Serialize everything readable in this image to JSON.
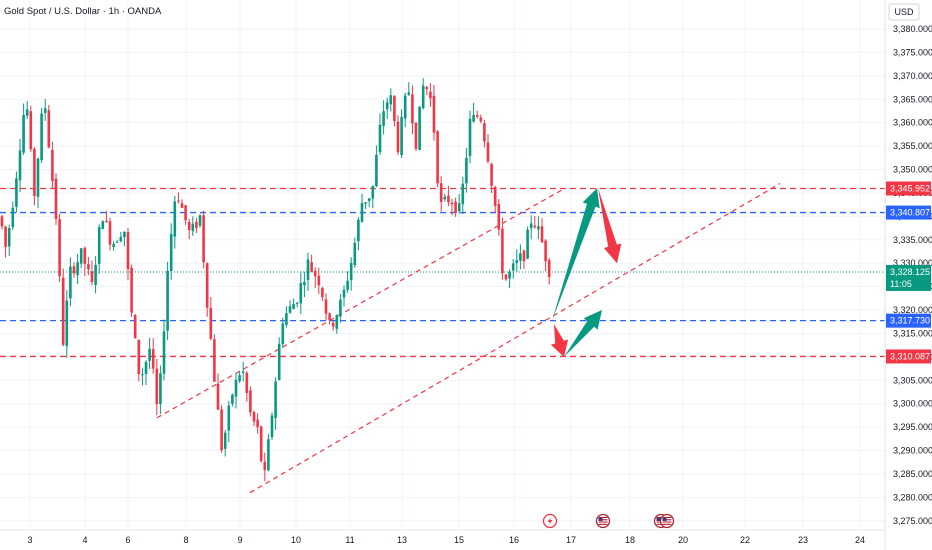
{
  "header": {
    "title": "Gold Spot / U.S. Dollar · 1h · OANDA"
  },
  "price_axis": {
    "currency": "USD"
  },
  "colors": {
    "up": "#089981",
    "down": "#f23645",
    "red_line": "#f23645",
    "blue_line": "#2962ff",
    "current_price": "#089981",
    "grid": "#f0f3fa",
    "arrow_up": "#089981",
    "arrow_down": "#f23645"
  },
  "chart_data": {
    "type": "candlestick",
    "title": "Gold Spot / U.S. Dollar · 1h · OANDA",
    "ylim": [
      3272,
      3386
    ],
    "y_ticks": [
      "3,275.000",
      "3,280.000",
      "3,285.000",
      "3,290.000",
      "3,295.000",
      "3,300.000",
      "3,305.000",
      "3,310.000",
      "3,315.000",
      "3,320.000",
      "3,325.000",
      "3,330.000",
      "3,335.000",
      "3,340.000",
      "3,345.000",
      "3,350.000",
      "3,355.000",
      "3,360.000",
      "3,365.000",
      "3,370.000",
      "3,375.000",
      "3,380.000"
    ],
    "x_ticks": [
      "3",
      "4",
      "6",
      "8",
      "9",
      "10",
      "11",
      "13",
      "15",
      "16",
      "17",
      "18",
      "20",
      "22",
      "23",
      "24"
    ],
    "grid": true,
    "horizontal_levels": [
      {
        "value": 3345.952,
        "label": "3,345.952",
        "style": "red-dashed"
      },
      {
        "value": 3340.807,
        "label": "3,340.807",
        "style": "blue-dashed"
      },
      {
        "value": 3317.73,
        "label": "3,317.730",
        "style": "blue-dashed"
      },
      {
        "value": 3310.087,
        "label": "3,310.087",
        "style": "red-dashed"
      }
    ],
    "current_price": {
      "value": 3328.125,
      "label": "3,328.125",
      "countdown": "11:05"
    },
    "path": [
      [
        0,
        3340
      ],
      [
        6,
        3333
      ],
      [
        14,
        3345
      ],
      [
        26,
        3366
      ],
      [
        34,
        3344
      ],
      [
        44,
        3366
      ],
      [
        56,
        3340
      ],
      [
        63,
        3313
      ],
      [
        70,
        3328
      ],
      [
        82,
        3332
      ],
      [
        92,
        3325
      ],
      [
        102,
        3341
      ],
      [
        112,
        3334
      ],
      [
        124,
        3338
      ],
      [
        132,
        3318
      ],
      [
        140,
        3305
      ],
      [
        150,
        3312
      ],
      [
        158,
        3297
      ],
      [
        168,
        3330
      ],
      [
        176,
        3346
      ],
      [
        190,
        3336
      ],
      [
        200,
        3340
      ],
      [
        208,
        3320
      ],
      [
        216,
        3302
      ],
      [
        222,
        3290
      ],
      [
        232,
        3302
      ],
      [
        242,
        3308
      ],
      [
        250,
        3298
      ],
      [
        258,
        3294
      ],
      [
        264,
        3283
      ],
      [
        272,
        3298
      ],
      [
        282,
        3318
      ],
      [
        296,
        3322
      ],
      [
        308,
        3330
      ],
      [
        320,
        3326
      ],
      [
        330,
        3316
      ],
      [
        342,
        3322
      ],
      [
        352,
        3331
      ],
      [
        362,
        3343
      ],
      [
        372,
        3345
      ],
      [
        382,
        3362
      ],
      [
        390,
        3366
      ],
      [
        398,
        3355
      ],
      [
        408,
        3368
      ],
      [
        416,
        3356
      ],
      [
        424,
        3369
      ],
      [
        432,
        3364
      ],
      [
        440,
        3342
      ],
      [
        450,
        3344
      ],
      [
        460,
        3341
      ],
      [
        470,
        3360
      ],
      [
        480,
        3362
      ],
      [
        488,
        3353
      ],
      [
        496,
        3341
      ],
      [
        504,
        3326
      ],
      [
        514,
        3329
      ],
      [
        524,
        3332
      ],
      [
        532,
        3340
      ],
      [
        540,
        3336
      ],
      [
        550,
        3328
      ]
    ],
    "trendlines": [
      {
        "from": [
          157,
          3297
        ],
        "to": [
          565,
          3346
        ],
        "style": "red-dashed"
      },
      {
        "from": [
          250,
          3281
        ],
        "to": [
          780,
          3347
        ],
        "style": "red-dashed"
      }
    ],
    "arrows": [
      {
        "from": [
          552,
          3317.7
        ],
        "to": [
          597,
          3346
        ],
        "direction": "up"
      },
      {
        "from": [
          598,
          3346
        ],
        "to": [
          617,
          3330
        ],
        "direction": "down"
      },
      {
        "from": [
          554,
          3317
        ],
        "to": [
          564,
          3310
        ],
        "direction": "down"
      },
      {
        "from": [
          564,
          3310
        ],
        "to": [
          602,
          3320
        ],
        "direction": "up"
      }
    ],
    "event_icons": [
      {
        "x": 550,
        "icon": "lightning-icon"
      },
      {
        "x": 603,
        "icon": "us-flag-icon"
      },
      {
        "x": 661,
        "icon": "us-flag-icon"
      },
      {
        "x": 667,
        "icon": "us-flag-icon"
      }
    ]
  }
}
